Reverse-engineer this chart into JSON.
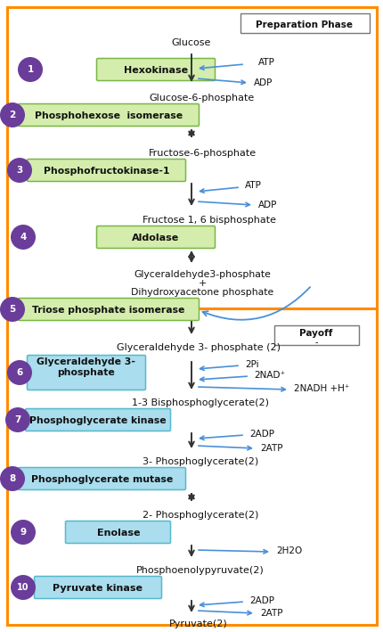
{
  "fig_width": 4.31,
  "fig_height": 7.09,
  "dpi": 100,
  "bg_color": "#ffffff",
  "orange": "#FF8C00",
  "green_enzyme_bg": "#d4edac",
  "green_enzyme_ec": "#7ab648",
  "cyan_enzyme_bg": "#aaddee",
  "cyan_enzyme_ec": "#55bbcc",
  "circle_bg": "#6a3d9a",
  "circle_text_color": "#ffffff",
  "arrow_color": "#4a90d9",
  "main_arrow_color": "#333333",
  "text_color": "#111111",
  "prep_label": "Preparation Phase",
  "payoff_label": "Payoff",
  "payoff_sub": "-",
  "steps_prep": [
    {
      "num": "1",
      "enzyme": "Hexokinase"
    },
    {
      "num": "2",
      "enzyme": "Phosphohexose  isomerase"
    },
    {
      "num": "3",
      "enzyme": "Phosphofructokinase-1"
    },
    {
      "num": "4",
      "enzyme": "Aldolase"
    },
    {
      "num": "5",
      "enzyme": "Triose phosphate isomerase"
    }
  ],
  "steps_pay": [
    {
      "num": "6",
      "enzyme": "Glyceraldehyde 3-\nphosphate"
    },
    {
      "num": "7",
      "enzyme": "Phosphoglycerate kinase"
    },
    {
      "num": "8",
      "enzyme": "Phosphoglycerate mutase"
    },
    {
      "num": "9",
      "enzyme": "Enolase"
    },
    {
      "num": "10",
      "enzyme": "Pyruvate kinase"
    }
  ]
}
